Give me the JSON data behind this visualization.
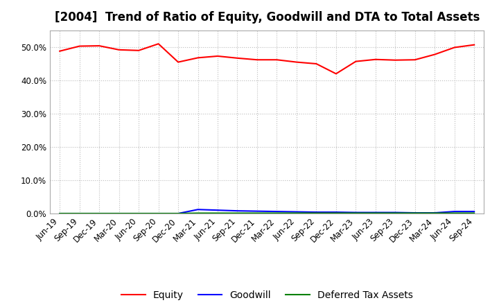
{
  "title": "[2004]  Trend of Ratio of Equity, Goodwill and DTA to Total Assets",
  "x_labels": [
    "Jun-19",
    "Sep-19",
    "Dec-19",
    "Mar-20",
    "Jun-20",
    "Sep-20",
    "Dec-20",
    "Mar-21",
    "Jun-21",
    "Sep-21",
    "Dec-21",
    "Mar-22",
    "Jun-22",
    "Sep-22",
    "Dec-22",
    "Mar-23",
    "Jun-23",
    "Sep-23",
    "Dec-23",
    "Mar-24",
    "Jun-24",
    "Sep-24"
  ],
  "equity": [
    0.488,
    0.503,
    0.504,
    0.492,
    0.49,
    0.51,
    0.455,
    0.468,
    0.473,
    0.467,
    0.462,
    0.462,
    0.455,
    0.45,
    0.42,
    0.457,
    0.463,
    0.461,
    0.462,
    0.478,
    0.499,
    0.507
  ],
  "goodwill": [
    0.0,
    0.0,
    0.0,
    0.0,
    0.0,
    0.0,
    0.0,
    0.012,
    0.01,
    0.008,
    0.007,
    0.006,
    0.005,
    0.004,
    0.004,
    0.003,
    0.003,
    0.003,
    0.002,
    0.002,
    0.006,
    0.006
  ],
  "dta": [
    0.0,
    0.0,
    0.0,
    0.0,
    0.0,
    0.0,
    0.0,
    0.001,
    0.001,
    0.001,
    0.001,
    0.001,
    0.001,
    0.001,
    0.001,
    0.001,
    0.001,
    0.001,
    0.001,
    0.001,
    0.001,
    0.001
  ],
  "equity_color": "#FF0000",
  "goodwill_color": "#0000FF",
  "dta_color": "#008000",
  "ylim": [
    0.0,
    0.55
  ],
  "yticks": [
    0.0,
    0.1,
    0.2,
    0.3,
    0.4,
    0.5
  ],
  "background_color": "#FFFFFF",
  "grid_color": "#BBBBBB",
  "title_fontsize": 12,
  "tick_fontsize": 8.5,
  "legend_fontsize": 10
}
